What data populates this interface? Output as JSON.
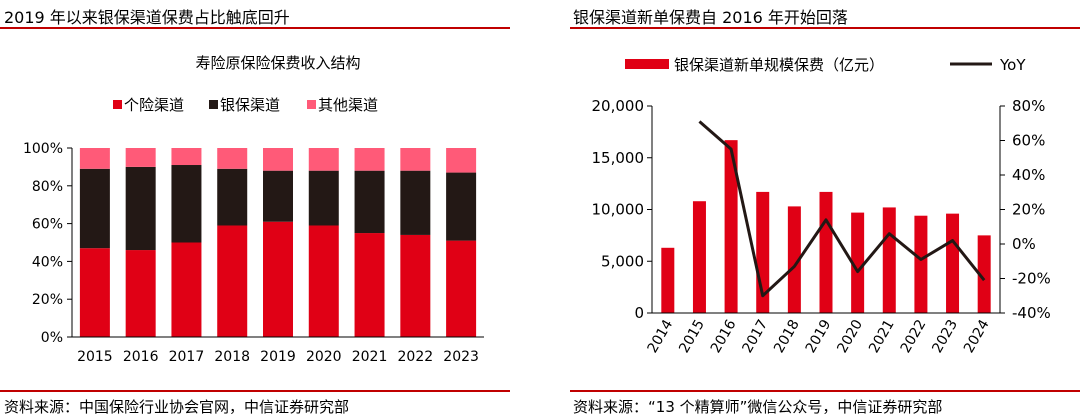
{
  "left_panel": {
    "title": "2019 年以来银保渠道保费占比触底回升",
    "source": "资料来源：中国保险行业协会官网，中信证券研究部"
  },
  "right_panel": {
    "title": "银保渠道新单保费自 2016 年开始回落",
    "source": "资料来源：“13 个精算师”微信公众号，中信证券研究部"
  },
  "colors": {
    "accent": "#c00000",
    "red": "#e00015",
    "black": "#231815",
    "pink": "#ff5a78"
  },
  "chart_data": [
    {
      "type": "bar",
      "stacked": true,
      "title": "寿险原保险保费收入结构",
      "categories": [
        "2015",
        "2016",
        "2017",
        "2018",
        "2019",
        "2020",
        "2021",
        "2022",
        "2023"
      ],
      "series": [
        {
          "name": "个险渠道",
          "values": [
            47,
            46,
            50,
            59,
            61,
            59,
            55,
            54,
            51
          ]
        },
        {
          "name": "银保渠道",
          "values": [
            42,
            44,
            41,
            30,
            27,
            29,
            33,
            34,
            36
          ]
        },
        {
          "name": "其他渠道",
          "values": [
            11,
            10,
            9,
            11,
            12,
            12,
            12,
            12,
            13
          ]
        }
      ],
      "y_ticks": [
        "0%",
        "20%",
        "40%",
        "60%",
        "80%",
        "100%"
      ],
      "ylim": [
        0,
        100
      ],
      "legend_position": "top"
    },
    {
      "type": "bar+line",
      "categories": [
        "2014",
        "2015",
        "2016",
        "2017",
        "2018",
        "2019",
        "2020",
        "2021",
        "2022",
        "2023",
        "2024"
      ],
      "series": [
        {
          "name": "银保渠道新单规模保费（亿元）",
          "type": "bar",
          "axis": "left",
          "values": [
            6300,
            10800,
            16700,
            11700,
            10300,
            11700,
            9700,
            10200,
            9400,
            9600,
            7500
          ]
        },
        {
          "name": "YoY",
          "type": "line",
          "axis": "right",
          "values": [
            null,
            71,
            55,
            -30,
            -13,
            14,
            -16,
            6,
            -9,
            2,
            -21
          ]
        }
      ],
      "y_left_ticks": [
        "0",
        "5,000",
        "10,000",
        "15,000",
        "20,000"
      ],
      "ylim_left": [
        0,
        20000
      ],
      "y_right_ticks": [
        "-40%",
        "-20%",
        "0%",
        "20%",
        "40%",
        "60%",
        "80%"
      ],
      "ylim_right": [
        -40,
        80
      ],
      "legend_position": "top"
    }
  ]
}
